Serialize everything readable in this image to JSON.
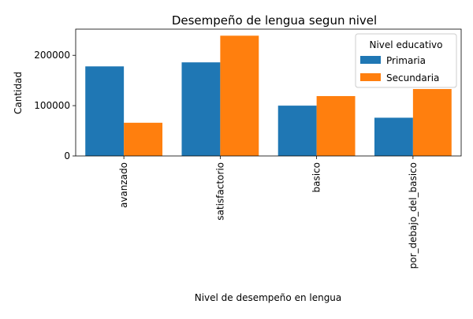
{
  "chart_data": {
    "type": "bar",
    "title": "Desempeño de lengua segun nivel",
    "xlabel": "Nivel de desempeño en lengua",
    "ylabel": "Cantidad",
    "categories": [
      "avanzado",
      "satisfactorio",
      "basico",
      "por_debajo_del_basico"
    ],
    "series": [
      {
        "name": "Primaria",
        "color": "#1f77b4",
        "values": [
          178000,
          186000,
          100000,
          76000
        ]
      },
      {
        "name": "Secundaria",
        "color": "#ff7f0e",
        "values": [
          66000,
          239000,
          119000,
          133000
        ]
      }
    ],
    "ylim": [
      0,
      252000
    ],
    "yticks": [
      0,
      100000,
      200000
    ],
    "ytick_labels": [
      "0",
      "100000",
      "200000"
    ],
    "legend": {
      "title": "Nivel educativo",
      "position": "top-right"
    },
    "grid": false
  }
}
